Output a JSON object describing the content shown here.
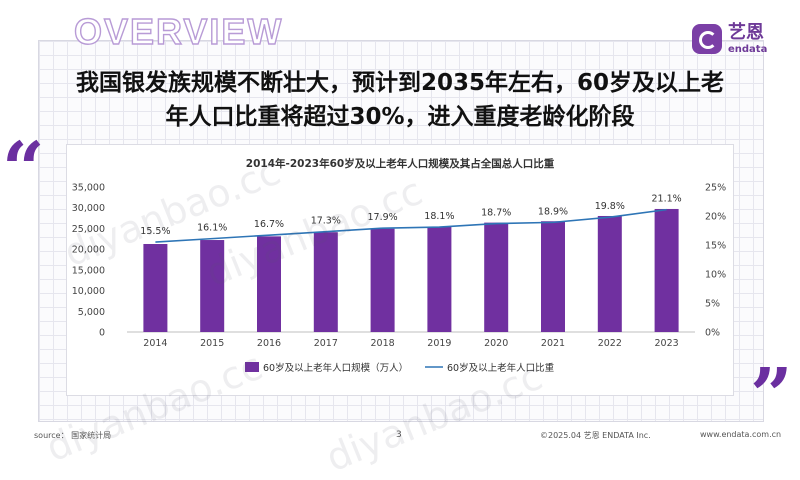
{
  "header": {
    "overview": "OVERVIEW",
    "logo_cn": "艺恩",
    "logo_en": "endata",
    "headline_line1": "我国银发族规模不断壮大，预计到2035年左右，60岁及以上老",
    "headline_line2": "年人口比重将超过30%，进入重度老龄化阶段"
  },
  "quotes": {
    "open": "“",
    "close": "”"
  },
  "colors": {
    "accent": "#6b2fa0",
    "bar": "#7030a0",
    "line": "#2e75b6"
  },
  "chart_data": {
    "type": "bar",
    "title": "2014年-2023年60岁及以上老年人口规模及其占全国总人口比重",
    "categories": [
      "2014",
      "2015",
      "2016",
      "2017",
      "2018",
      "2019",
      "2020",
      "2021",
      "2022",
      "2023"
    ],
    "series": [
      {
        "name": "60岁及以上老年人口规模（万人）",
        "type": "bar",
        "axis": "left",
        "values": [
          21242,
          22200,
          23086,
          24090,
          24949,
          25388,
          26402,
          26736,
          28004,
          29697
        ]
      },
      {
        "name": "60岁及以上老年人口比重",
        "type": "line",
        "axis": "right",
        "values": [
          15.5,
          16.1,
          16.7,
          17.3,
          17.9,
          18.1,
          18.7,
          18.9,
          19.8,
          21.1
        ]
      }
    ],
    "data_labels": [
      "15.5%",
      "16.1%",
      "16.7%",
      "17.3%",
      "17.9%",
      "18.1%",
      "18.7%",
      "18.9%",
      "19.8%",
      "21.1%"
    ],
    "ylim_left": [
      0,
      35000
    ],
    "yticks_left": [
      "0",
      "5,000",
      "10,000",
      "15,000",
      "20,000",
      "25,000",
      "30,000",
      "35,000"
    ],
    "ylim_right": [
      0,
      25
    ],
    "yticks_right": [
      "0%",
      "5%",
      "10%",
      "15%",
      "20%",
      "25%"
    ],
    "legend_position": "bottom",
    "grid": false
  },
  "footer": {
    "source": "source： 国家统计局",
    "page": "3",
    "copyright": "©2025.04  艺恩 ENDATA Inc.",
    "url": "www.endata.com.cn"
  },
  "watermark": "diyanbao.cc"
}
